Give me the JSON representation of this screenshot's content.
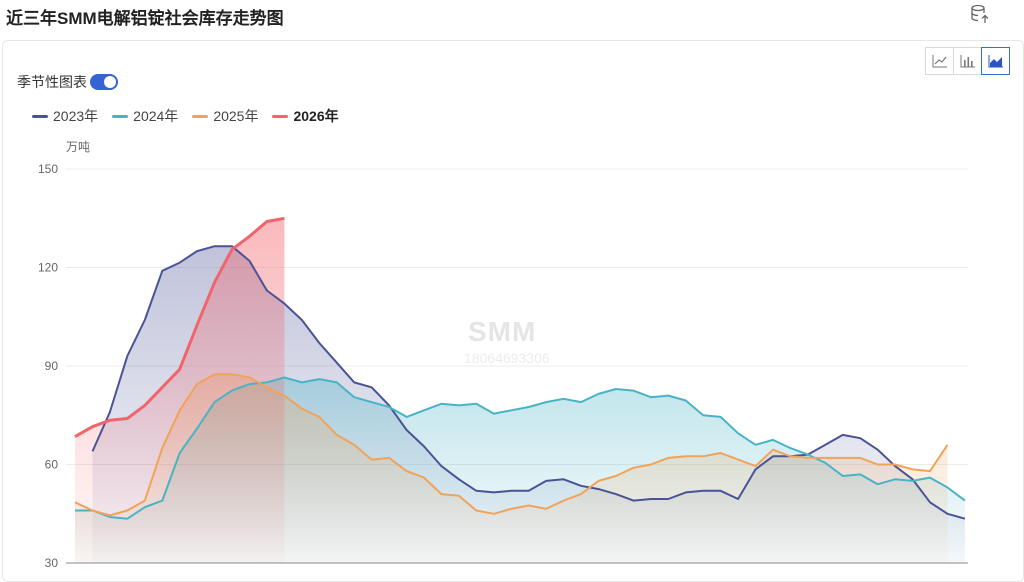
{
  "title": "近三年SMM电解铝锭社会库存走势图",
  "icons": {
    "export": "database-export-icon",
    "line": "line-chart-icon",
    "bar": "bar-chart-icon",
    "area": "area-chart-icon"
  },
  "seasonal": {
    "label": "季节性图表",
    "enabled": true
  },
  "unit": "万吨",
  "watermark": {
    "brand": "SMM",
    "phone": "18064693306"
  },
  "chart_data": {
    "type": "area",
    "ylim": [
      30,
      150
    ],
    "yticks": [
      "30",
      "60",
      "90",
      "120",
      "150"
    ],
    "grid": true,
    "legend_position": "top-left",
    "series": [
      {
        "name": "2023年",
        "color": "#4a5396",
        "bold": false,
        "values": [
          64,
          76,
          93,
          104,
          119,
          121.5,
          125,
          126.5,
          126.5,
          122,
          113,
          109,
          104,
          97,
          91,
          85,
          83.5,
          78,
          70.5,
          65.5,
          59.5,
          55.5,
          52,
          51.5,
          52,
          52,
          55,
          55.5,
          53.5,
          52.5,
          51,
          49,
          49.5,
          49.5,
          51.5,
          52,
          52,
          49.5,
          58.5,
          62.5,
          62.5,
          63,
          66,
          69,
          68,
          64.5,
          59.5,
          55.5,
          48.5,
          45,
          43.5
        ]
      },
      {
        "name": "2024年",
        "color": "#49b3c6",
        "bold": false,
        "values": [
          46,
          46,
          44,
          43.5,
          47,
          49,
          63.5,
          71,
          79,
          82.5,
          84.5,
          85,
          86.5,
          85,
          86,
          85,
          80.5,
          79,
          77.5,
          74.5,
          76.5,
          78.5,
          78,
          78.5,
          75.5,
          76.5,
          77.5,
          79,
          80,
          79,
          81.5,
          83,
          82.5,
          80.5,
          81,
          79.5,
          75,
          74.5,
          69.5,
          66,
          67.5,
          65,
          63,
          60.5,
          56.5,
          57,
          54,
          55.5,
          55,
          56,
          53,
          49
        ]
      },
      {
        "name": "2025年",
        "color": "#f0a35a",
        "bold": false,
        "values": [
          48.5,
          46,
          44.5,
          46,
          49,
          65,
          76.5,
          84.5,
          87.5,
          87.5,
          86.5,
          83.5,
          81,
          77,
          74.5,
          69,
          66,
          61.5,
          62,
          58,
          56,
          51,
          50.5,
          46,
          45,
          46.5,
          47.5,
          46.5,
          49,
          51,
          55,
          56.5,
          59,
          60,
          62,
          62.5,
          62.5,
          63.5,
          61.5,
          59.5,
          64.5,
          62.5,
          62,
          62,
          62,
          62,
          60,
          60,
          58.5,
          58,
          66
        ]
      },
      {
        "name": "2026年",
        "color": "#f2646b",
        "bold": true,
        "values": [
          68.5,
          71.5,
          73.5,
          74,
          78,
          83.5,
          89,
          102.5,
          115.5,
          125.5,
          129.5,
          134,
          135
        ]
      }
    ]
  }
}
